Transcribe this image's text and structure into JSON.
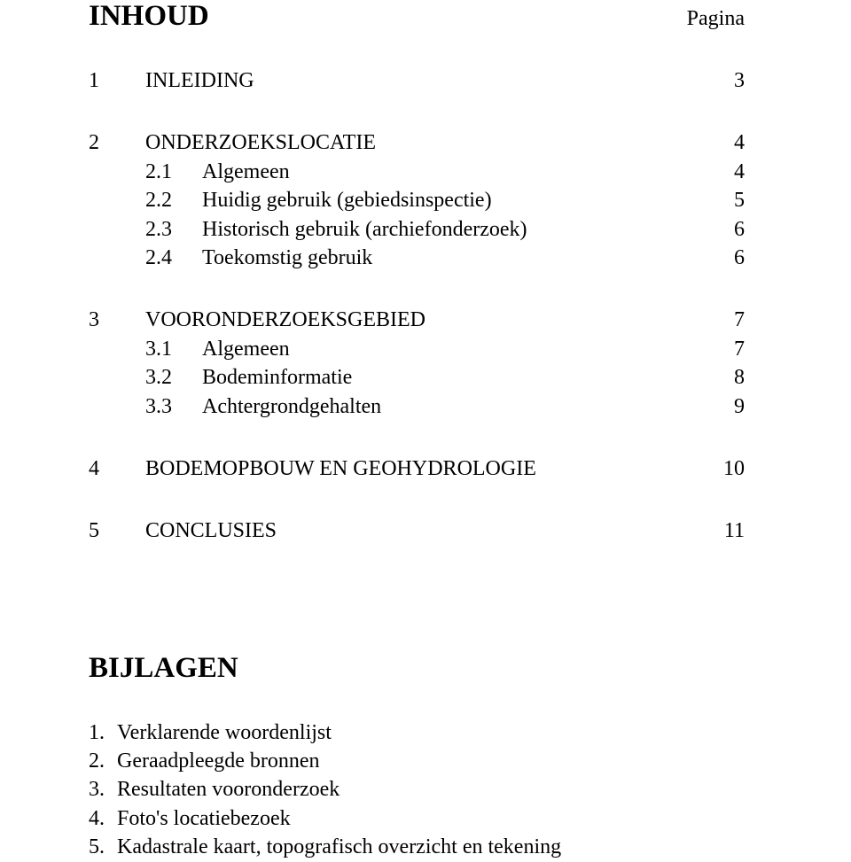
{
  "header": {
    "title": "INHOUD",
    "page_label": "Pagina"
  },
  "toc": [
    {
      "num": "1",
      "title": "INLEIDING",
      "page": "3",
      "subs": []
    },
    {
      "num": "2",
      "title": "ONDERZOEKSLOCATIE",
      "page": "4",
      "subs": [
        {
          "num": "2.1",
          "title": "Algemeen",
          "page": "4"
        },
        {
          "num": "2.2",
          "title": "Huidig gebruik (gebiedsinspectie)",
          "page": "5"
        },
        {
          "num": "2.3",
          "title": "Historisch gebruik (archiefonderzoek)",
          "page": "6"
        },
        {
          "num": "2.4",
          "title": "Toekomstig gebruik",
          "page": "6"
        }
      ]
    },
    {
      "num": "3",
      "title": "VOORONDERZOEKSGEBIED",
      "page": "7",
      "subs": [
        {
          "num": "3.1",
          "title": "Algemeen",
          "page": "7"
        },
        {
          "num": "3.2",
          "title": "Bodeminformatie",
          "page": "8"
        },
        {
          "num": "3.3",
          "title": "Achtergrondgehalten",
          "page": "9"
        }
      ]
    },
    {
      "num": "4",
      "title": "BODEMOPBOUW EN GEOHYDROLOGIE",
      "page": "10",
      "subs": []
    },
    {
      "num": "5",
      "title": "CONCLUSIES",
      "page": "11",
      "subs": []
    }
  ],
  "bijlagen": {
    "title": "BIJLAGEN",
    "items": [
      {
        "num": "1.",
        "text": "Verklarende woordenlijst"
      },
      {
        "num": "2.",
        "text": "Geraadpleegde bronnen"
      },
      {
        "num": "3.",
        "text": "Resultaten vooronderzoek"
      },
      {
        "num": "4.",
        "text": "Foto's locatiebezoek"
      },
      {
        "num": "5.",
        "text": "Kadastrale kaart, topografisch overzicht en tekening"
      }
    ]
  }
}
